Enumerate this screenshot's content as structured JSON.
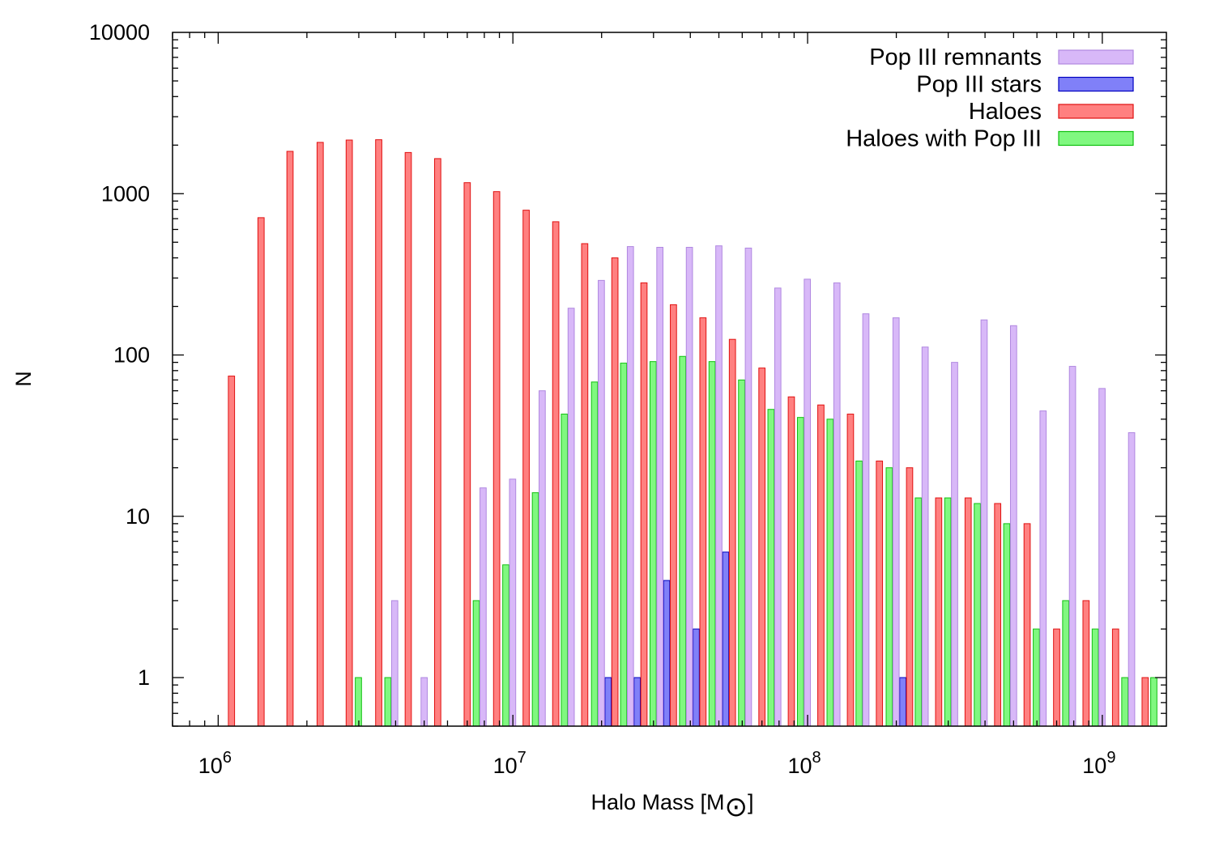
{
  "chart_data": {
    "type": "bar",
    "title": "",
    "xlabel": "Halo Mass [M",
    "xlabel_symbol": "⊙",
    "xlabel_close": "]",
    "ylabel": "N",
    "xscale": "log",
    "yscale": "log",
    "xlim": [
      700000,
      1650000000
    ],
    "ylim": [
      0.5,
      10000
    ],
    "x_ticks": [
      {
        "base": "10",
        "exp": "6",
        "value": 1000000
      },
      {
        "base": "10",
        "exp": "7",
        "value": 10000000
      },
      {
        "base": "10",
        "exp": "8",
        "value": 100000000
      },
      {
        "base": "10",
        "exp": "9",
        "value": 1000000000
      }
    ],
    "y_ticks": [
      {
        "label": "1",
        "value": 1
      },
      {
        "label": "10",
        "value": 10
      },
      {
        "label": "100",
        "value": 100
      },
      {
        "label": "1000",
        "value": 1000
      },
      {
        "label": "10000",
        "value": 10000
      }
    ],
    "grid": false,
    "legend_position": "top-right",
    "bin_centers": [
      1000000,
      1260000,
      1580000,
      2000000,
      2510000,
      3160000,
      3980000,
      5010000,
      6310000,
      7940000,
      10000000,
      12600000,
      15800000,
      20000000,
      25100000,
      31600000,
      39800000,
      50100000,
      63100000,
      79400000,
      100000000,
      126000000,
      158000000,
      200000000,
      251000000,
      316000000,
      398000000,
      501000000,
      631000000,
      794000000,
      1000000000,
      1260000000,
      1580000000
    ],
    "bin_width_dex": 0.1,
    "series": [
      {
        "name": "Pop III remnants",
        "color": "#d8b8f8",
        "stroke": "#b088e0",
        "values": [
          null,
          null,
          null,
          null,
          null,
          null,
          3,
          1,
          null,
          15,
          17,
          60,
          195,
          290,
          470,
          465,
          465,
          475,
          460,
          260,
          295,
          280,
          180,
          170,
          112,
          90,
          165,
          152,
          45,
          85,
          62,
          33,
          null
        ]
      },
      {
        "name": "Pop III stars",
        "color": "#8080f8",
        "stroke": "#0000c0",
        "values": [
          null,
          null,
          null,
          null,
          null,
          null,
          null,
          null,
          null,
          null,
          null,
          null,
          null,
          1,
          1,
          4,
          2,
          6,
          null,
          null,
          null,
          null,
          null,
          1,
          null,
          null,
          null,
          null,
          null,
          null,
          null,
          null,
          null
        ]
      },
      {
        "name": "Haloes",
        "color": "#ff8080",
        "stroke": "#e01010",
        "values": [
          74,
          710,
          1830,
          2080,
          2150,
          2160,
          1800,
          1650,
          1170,
          1030,
          790,
          670,
          490,
          400,
          280,
          205,
          170,
          125,
          83,
          55,
          49,
          43,
          22,
          20,
          13,
          13,
          12,
          9,
          2,
          3,
          2,
          1,
          null
        ]
      },
      {
        "name": "Haloes with Pop III",
        "color": "#80f880",
        "stroke": "#10c010",
        "values": [
          null,
          null,
          null,
          null,
          null,
          1,
          1,
          null,
          null,
          3,
          5,
          14,
          43,
          68,
          89,
          91,
          98,
          91,
          70,
          46,
          41,
          40,
          22,
          20,
          13,
          13,
          12,
          9,
          2,
          3,
          2,
          1,
          1
        ]
      }
    ]
  }
}
